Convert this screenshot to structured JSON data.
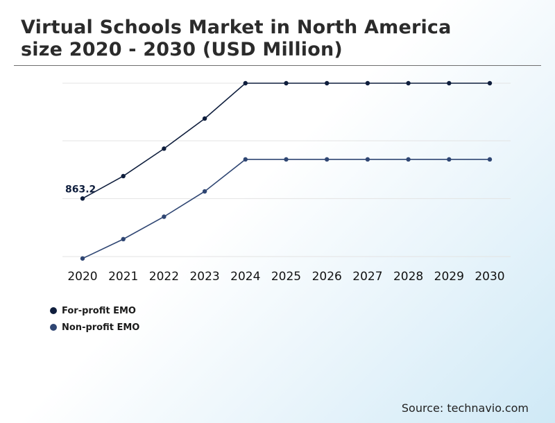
{
  "header": {
    "title_line1": "Virtual Schools Market in North America",
    "title_line2": "size 2020 - 2030 (USD Million)"
  },
  "chart_data": {
    "type": "line",
    "title": "Virtual Schools Market in North America size 2020 - 2030 (USD Million)",
    "xlabel": "",
    "ylabel": "",
    "categories": [
      "2020",
      "2021",
      "2022",
      "2023",
      "2024",
      "2025",
      "2026",
      "2027",
      "2028",
      "2029",
      "2030"
    ],
    "series": [
      {
        "name": "For-profit EMO",
        "color": "#0f1e3d",
        "values": [
          863.2,
          957,
          1072,
          1198,
          1346,
          1346,
          1346,
          1346,
          1346,
          1346,
          1346
        ]
      },
      {
        "name": "Non-profit EMO",
        "color": "#2f4673",
        "values": [
          612,
          693,
          787,
          893,
          1027,
          1027,
          1027,
          1027,
          1027,
          1027,
          1027
        ]
      }
    ],
    "annotations": [
      {
        "series": 0,
        "index": 0,
        "label": "863.2"
      }
    ],
    "ylim": [
      580,
      1380
    ],
    "gridlines": [
      620,
      863,
      1105,
      1346
    ],
    "grid": true,
    "legend_position": "bottom-left"
  },
  "footer": {
    "source": "Source: technavio.com"
  }
}
